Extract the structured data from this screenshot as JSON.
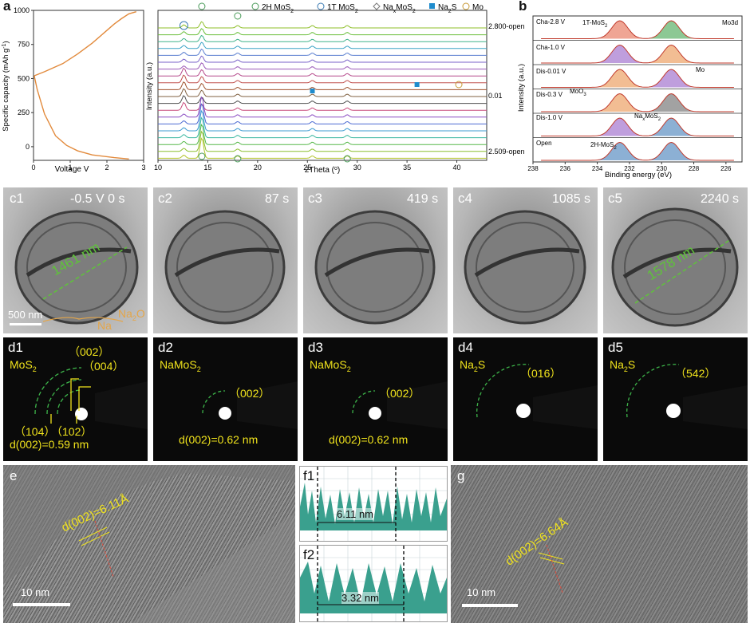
{
  "panels": {
    "a": "a",
    "b": "b",
    "c1": "c1",
    "c2": "c2",
    "c3": "c3",
    "c4": "c4",
    "c5": "c5",
    "d1": "d1",
    "d2": "d2",
    "d3": "d3",
    "d4": "d4",
    "d5": "d5",
    "e": "e",
    "f1": "f1",
    "f2": "f2",
    "g": "g"
  },
  "chart_data": [
    {
      "type": "line",
      "xlabel": "Voltage V",
      "ylabel": "Specific capacity (mAh g",
      "ylabel_sup": "-1",
      "ylabel_close": ")",
      "xlim": [
        0,
        3
      ],
      "ylim": [
        -100,
        1000
      ],
      "x_ticks": [
        "0",
        "1",
        "2",
        "3"
      ],
      "y_ticks": [
        "0",
        "250",
        "500",
        "750",
        "1000"
      ],
      "color": "#e28a3c",
      "series": [
        {
          "x": [
            2.6,
            2.2,
            1.6,
            1.2,
            0.9,
            0.6,
            0.3,
            0.1,
            0.02
          ],
          "y": [
            -90,
            -80,
            -60,
            -30,
            10,
            80,
            240,
            420,
            520
          ]
        },
        {
          "x": [
            0.02,
            0.3,
            0.8,
            1.2,
            1.6,
            1.9,
            2.2,
            2.4,
            2.6,
            2.8
          ],
          "y": [
            520,
            550,
            610,
            680,
            760,
            830,
            900,
            940,
            975,
            990
          ]
        }
      ]
    },
    {
      "type": "line",
      "xlabel": "2Theta (",
      "xlabel_deg": "o",
      "xlabel_close": ")",
      "ylabel": "Intensity (a.u.)",
      "xlim": [
        10,
        43
      ],
      "x_ticks": [
        "10",
        "15",
        "20",
        "25",
        "30",
        "35",
        "40"
      ],
      "legend": [
        "2H MoS",
        "1T MoS",
        "Na",
        "MoS",
        "Na",
        "S",
        "Mo"
      ],
      "annotations": [
        "2.800-open",
        "0.01",
        "2.509-open"
      ],
      "peaks_2theta": [
        12.6,
        14.4,
        18.0,
        25.5,
        29.0
      ],
      "series_colors": [
        "#8fbf2a",
        "#6abf3a",
        "#3fb28a",
        "#3aa3c6",
        "#5a7fd0",
        "#7a62c8",
        "#9a58b8",
        "#b64a8c",
        "#c0504d",
        "#a0522d",
        "#806040",
        "#505050",
        "#c94b7c",
        "#8a4cc2",
        "#4d6bd3",
        "#3d9bd2",
        "#3ab8a0",
        "#56b84a",
        "#8cbf2e",
        "#b3c42d"
      ]
    },
    {
      "type": "line",
      "xlabel": "Binding energy (eV)",
      "ylabel": "Intensity (a.u.)",
      "xlim": [
        238,
        225
      ],
      "x_ticks": [
        "238",
        "236",
        "234",
        "232",
        "230",
        "228",
        "226"
      ],
      "rows": [
        "Cha-2.8 V",
        "Cha-1.0 V",
        "Dis-0.01 V",
        "Dis-0.3 V",
        "Dis-1.0 V",
        "Open"
      ],
      "annotations": [
        "1T-MoS",
        "Mo3d",
        "Mo",
        "MoO",
        "Na",
        "MoS",
        "2H-MoS"
      ]
    }
  ],
  "c_row": {
    "labels": [
      "-0.5 V 0 s",
      "87 s",
      "419 s",
      "1085 s",
      "2240 s"
    ],
    "measure_c1": "1461 nm",
    "measure_c5": "1578 nm",
    "scale": "500 nm",
    "na2o": "Na",
    "na2o_sub": "2",
    "na2o_tail": "O",
    "na": "Na"
  },
  "d_row": {
    "d1_title": "MoS",
    "d1_sub": "2",
    "d1_002": "（002）",
    "d1_004": "（004）",
    "d1_104": "（104）",
    "d1_102": "（102）",
    "d1_d": "d(002)=0.59 nm",
    "d2_title": "NaMoS",
    "d2_sub": "2",
    "d2_ring": "（002）",
    "d2_d": "d(002)=0.62 nm",
    "d3_title": "NaMoS",
    "d3_sub": "2",
    "d3_ring": "（002）",
    "d3_d": "d(002)=0.62 nm",
    "d4_title": "Na",
    "d4_sub": "2",
    "d4_tail": "S",
    "d4_ring": "（016）",
    "d5_title": "Na",
    "d5_sub": "2",
    "d5_tail": "S",
    "d5_ring": "（542）"
  },
  "e_row": {
    "e_d": "d(002)=6.11Å",
    "e_scale": "10 nm",
    "f1_measure": "6.11 nm",
    "f2_measure": "3.32 nm",
    "g_d": "d(002)=6.64Å",
    "g_scale": "10 nm"
  }
}
